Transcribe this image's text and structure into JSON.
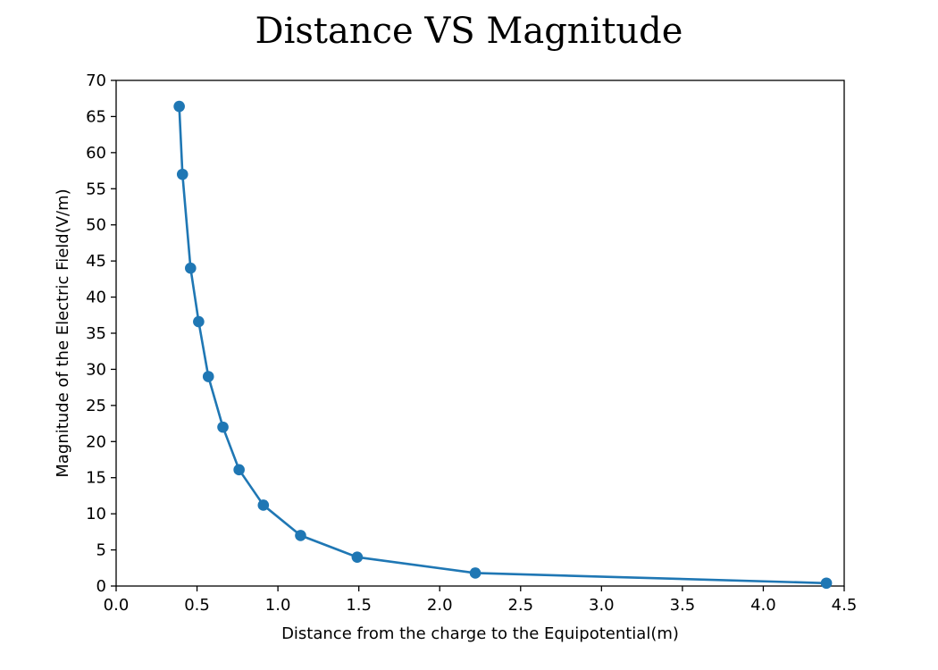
{
  "chart_data": {
    "type": "line",
    "title": "Distance VS Magnitude",
    "xlabel": "Distance from the charge to the Equipotential(m)",
    "ylabel": "Magnitude of the Electric Field(V/m)",
    "xlim": [
      0.0,
      4.5
    ],
    "ylim": [
      0,
      70
    ],
    "xticks": [
      "0.0",
      "0.5",
      "1.0",
      "1.5",
      "2.0",
      "2.5",
      "3.0",
      "3.5",
      "4.0",
      "4.5"
    ],
    "yticks": [
      "0",
      "5",
      "10",
      "15",
      "20",
      "25",
      "30",
      "35",
      "40",
      "45",
      "50",
      "55",
      "60",
      "65",
      "70"
    ],
    "grid": false,
    "series": [
      {
        "color": "#1f77b4",
        "marker": "circle",
        "x": [
          0.39,
          0.41,
          0.46,
          0.51,
          0.57,
          0.66,
          0.76,
          0.91,
          1.14,
          1.49,
          2.22,
          4.39
        ],
        "y": [
          66.4,
          57.0,
          44.0,
          36.6,
          29.0,
          22.0,
          16.1,
          11.2,
          7.0,
          4.0,
          1.8,
          0.4
        ]
      }
    ]
  }
}
